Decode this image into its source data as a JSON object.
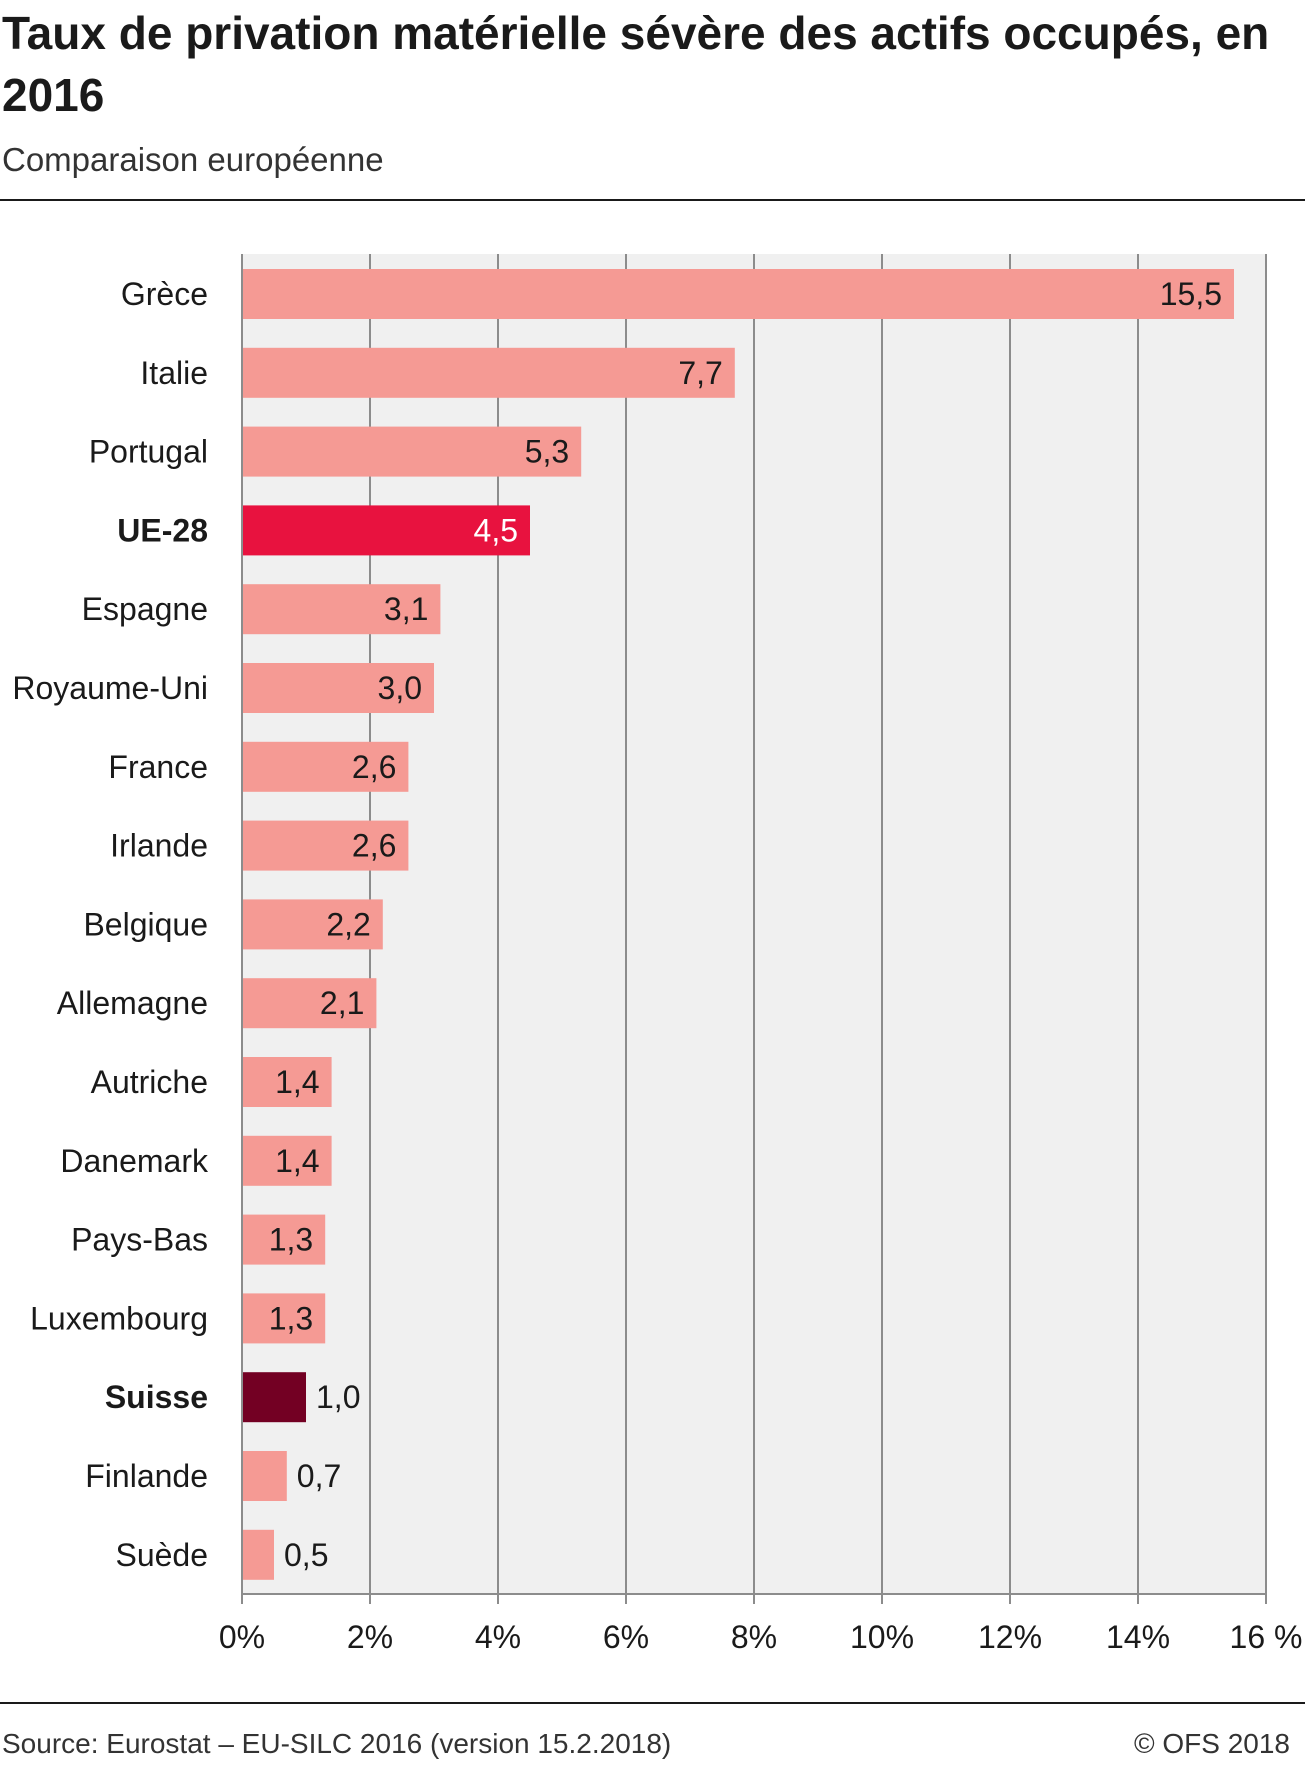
{
  "header": {
    "title": "Taux de privation matérielle sévère des actifs occupés, en 2016",
    "subtitle": "Comparaison européenne"
  },
  "footer": {
    "source": "Source: Eurostat – EU-SILC 2016 (version 15.2.2018)",
    "copyright": "© OFS 2018"
  },
  "colors": {
    "bar": "#F59A94",
    "highlight_eu": "#E8123F",
    "highlight_ch": "#730023",
    "plot_bg": "#F0F0F0",
    "grid": "#8C8C8C"
  },
  "chart_data": {
    "type": "bar",
    "orientation": "horizontal",
    "title": "Taux de privation matérielle sévère des actifs occupés, en 2016",
    "subtitle": "Comparaison européenne",
    "categories": [
      "Grèce",
      "Italie",
      "Portugal",
      "UE-28",
      "Espagne",
      "Royaume-Uni",
      "France",
      "Irlande",
      "Belgique",
      "Allemagne",
      "Autriche",
      "Danemark",
      "Pays-Bas",
      "Luxembourg",
      "Suisse",
      "Finlande",
      "Suède"
    ],
    "values": [
      15.5,
      7.7,
      5.3,
      4.5,
      3.1,
      3.0,
      2.6,
      2.6,
      2.2,
      2.1,
      1.4,
      1.4,
      1.3,
      1.3,
      1.0,
      0.7,
      0.5
    ],
    "value_labels": [
      "15,5",
      "7,7",
      "5,3",
      "4,5",
      "3,1",
      "3,0",
      "2,6",
      "2,6",
      "2,2",
      "2,1",
      "1,4",
      "1,4",
      "1,3",
      "1,3",
      "1,0",
      "0,7",
      "0,5"
    ],
    "highlights": {
      "UE-28": "eu",
      "Suisse": "ch"
    },
    "bold_categories": [
      "UE-28",
      "Suisse"
    ],
    "xlim": [
      0,
      16
    ],
    "xticks": [
      0,
      2,
      4,
      6,
      8,
      10,
      12,
      14,
      16
    ],
    "xtick_labels": [
      "0%",
      "2%",
      "4%",
      "6%",
      "8%",
      "10%",
      "12%",
      "14%",
      "16 %"
    ],
    "xlabel": "",
    "ylabel": "",
    "grid": true,
    "legend": "none"
  }
}
